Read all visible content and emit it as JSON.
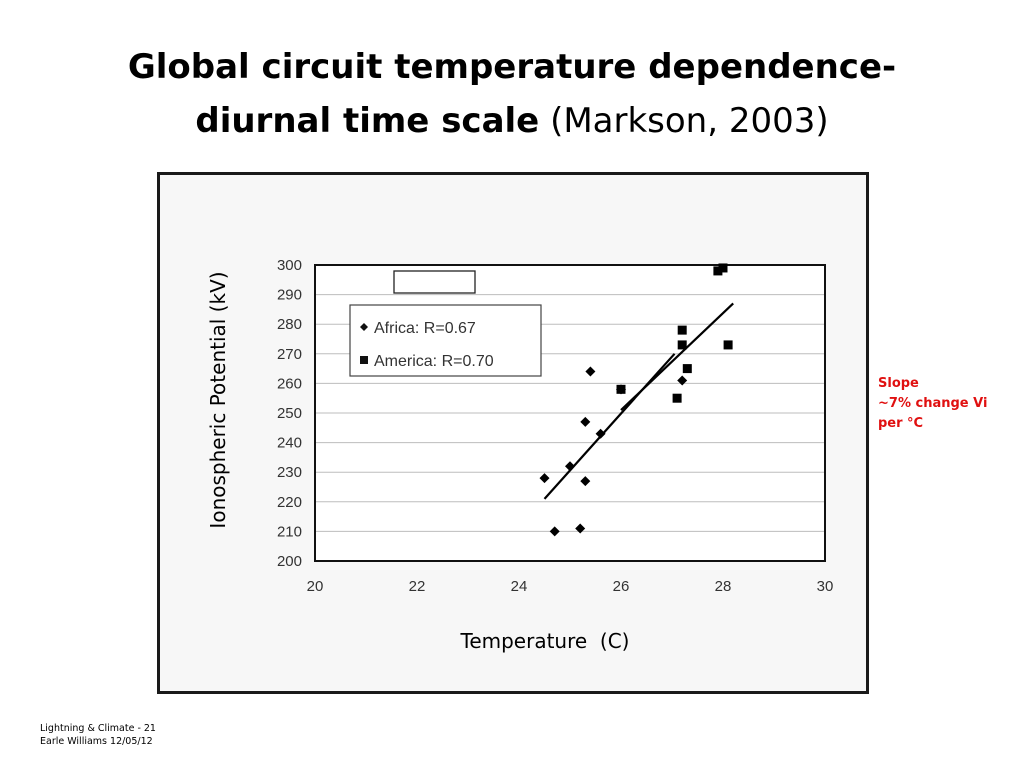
{
  "slide": {
    "title_bold_line1": "Global circuit temperature dependence-",
    "title_bold_line2": "diurnal time scale",
    "title_citation": "(Markson, 2003)",
    "ylabel": "Ionospheric Potential (kV)",
    "xlabel": "Temperature  (C)",
    "slope_note": [
      "Slope",
      "~7% change Vi",
      "per °C"
    ],
    "footer": [
      "Lightning & Climate - 21",
      "Earle Williams 12/05/12"
    ]
  },
  "chart_data": {
    "type": "scatter",
    "xlim": [
      20,
      30
    ],
    "ylim": [
      200,
      300
    ],
    "xticks": [
      "20",
      "22",
      "24",
      "26",
      "28",
      "30"
    ],
    "yticks": [
      "200",
      "210",
      "220",
      "230",
      "240",
      "250",
      "260",
      "270",
      "280",
      "290",
      "300"
    ],
    "grid": "horizontal",
    "legend_position": "top-left",
    "series": [
      {
        "name": "Africa: R=0.67",
        "marker": "diamond",
        "points": [
          [
            24.5,
            228
          ],
          [
            24.7,
            210
          ],
          [
            25.0,
            232
          ],
          [
            25.2,
            211
          ],
          [
            25.3,
            247
          ],
          [
            25.3,
            227
          ],
          [
            25.4,
            264
          ],
          [
            25.6,
            243
          ],
          [
            26.0,
            258
          ],
          [
            27.2,
            261
          ]
        ],
        "fit": [
          [
            24.5,
            221
          ],
          [
            27.05,
            270
          ]
        ]
      },
      {
        "name": "America: R=0.70",
        "marker": "square",
        "points": [
          [
            26.0,
            258
          ],
          [
            27.1,
            255
          ],
          [
            27.2,
            278
          ],
          [
            27.2,
            273
          ],
          [
            27.3,
            265
          ],
          [
            27.9,
            298
          ],
          [
            28.0,
            299
          ],
          [
            28.1,
            273
          ]
        ],
        "fit": [
          [
            26.0,
            251
          ],
          [
            28.2,
            287
          ]
        ]
      }
    ]
  }
}
